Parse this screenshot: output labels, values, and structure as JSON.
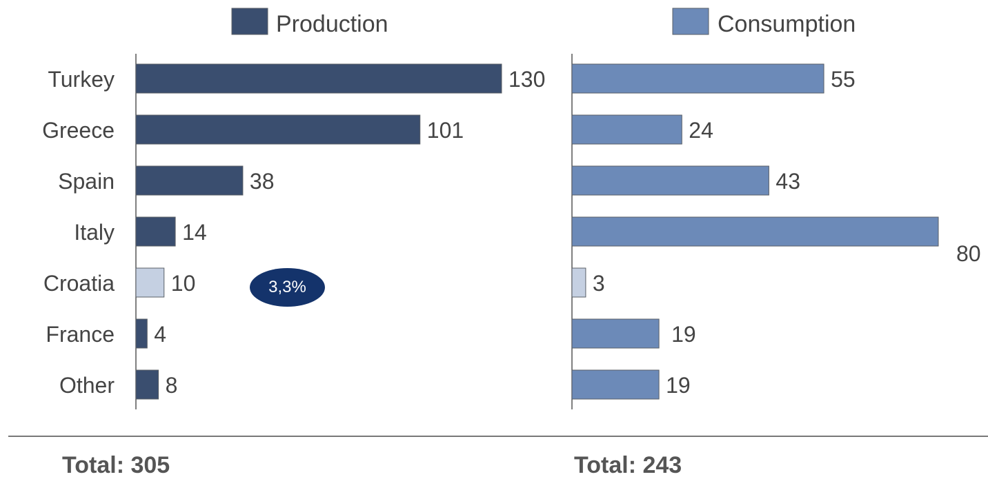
{
  "chart_data": {
    "type": "bar",
    "orientation": "horizontal",
    "categories": [
      "Turkey",
      "Greece",
      "Spain",
      "Italy",
      "Croatia",
      "France",
      "Other"
    ],
    "highlighted_category": "Croatia",
    "series": [
      {
        "name": "Production",
        "values": [
          130,
          101,
          38,
          14,
          10,
          4,
          8
        ],
        "total_label": "Total: 305",
        "color": "#3a4e6f",
        "highlight_color": "#c5d0e2"
      },
      {
        "name": "Consumption",
        "values": [
          55,
          24,
          43,
          80,
          3,
          19,
          19
        ],
        "total_label": "Total: 243",
        "color": "#6c8ab8",
        "highlight_color": "#c5d0e2"
      }
    ],
    "annotation": "3,3%",
    "grid": false,
    "legend": "top"
  },
  "colors": {
    "production": "#3a4e6f",
    "consumption": "#6c8ab8",
    "highlight": "#c5d0e2",
    "badge": "#14336b",
    "text": "#444444"
  }
}
